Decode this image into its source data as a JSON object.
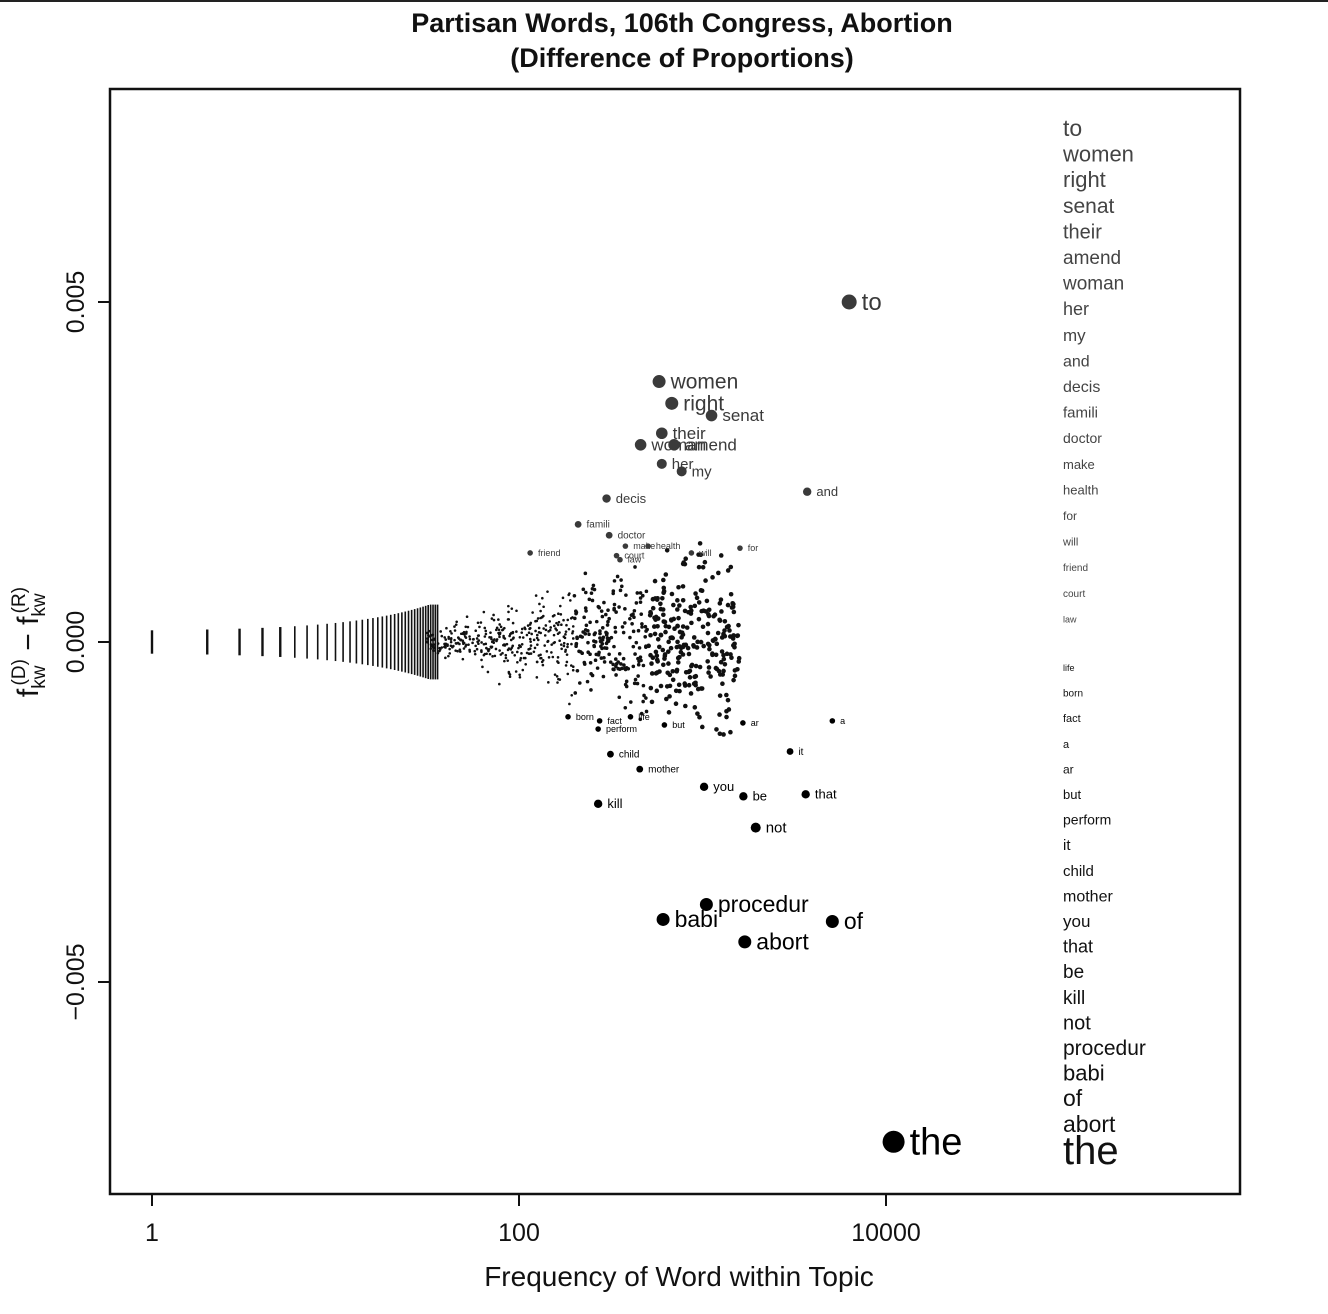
{
  "title_line1": "Partisan Words, 106th Congress, Abortion",
  "title_line2": "(Difference of Proportions)",
  "chart_data": {
    "type": "scatter",
    "title": "Partisan Words, 106th Congress, Abortion (Difference of Proportions)",
    "xlabel": "Frequency of Word within Topic",
    "ylabel": "f_kw^(D) - f_kw^(R)",
    "x_scale": "log",
    "xlim": [
      0.6,
      10000000
    ],
    "ylim": [
      -0.0082,
      0.0081
    ],
    "x_ticks": [
      1,
      100,
      10000
    ],
    "x_tick_labels": [
      "1",
      "100",
      "10000"
    ],
    "y_ticks": [
      -0.005,
      0,
      0.005
    ],
    "y_tick_labels": [
      "-0.005",
      "0.000",
      "0.005"
    ],
    "grid": false,
    "legend": "none",
    "point_colors": {
      "democrat": "#3a3a3a",
      "republican": "#000000"
    },
    "labeled_points": [
      {
        "word": "to",
        "x": 6300,
        "y": 0.005
      },
      {
        "word": "women",
        "x": 580,
        "y": 0.00383
      },
      {
        "word": "right",
        "x": 680,
        "y": 0.00351
      },
      {
        "word": "senat",
        "x": 1120,
        "y": 0.00333
      },
      {
        "word": "their",
        "x": 600,
        "y": 0.00307
      },
      {
        "word": "woman",
        "x": 460,
        "y": 0.0029
      },
      {
        "word": "amend",
        "x": 700,
        "y": 0.0029
      },
      {
        "word": "her",
        "x": 600,
        "y": 0.00262
      },
      {
        "word": "my",
        "x": 770,
        "y": 0.00251
      },
      {
        "word": "and",
        "x": 3720,
        "y": 0.00221
      },
      {
        "word": "decis",
        "x": 300,
        "y": 0.00211
      },
      {
        "word": "famili",
        "x": 210,
        "y": 0.00173
      },
      {
        "word": "doctor",
        "x": 310,
        "y": 0.00157
      },
      {
        "word": "make",
        "x": 380,
        "y": 0.00141
      },
      {
        "word": "health",
        "x": 505,
        "y": 0.00141
      },
      {
        "word": "for",
        "x": 1600,
        "y": 0.00138
      },
      {
        "word": "will",
        "x": 870,
        "y": 0.00131
      },
      {
        "word": "friend",
        "x": 115,
        "y": 0.00131
      },
      {
        "word": "court",
        "x": 340,
        "y": 0.00127
      },
      {
        "word": "law",
        "x": 355,
        "y": 0.00121
      },
      {
        "word": "life",
        "x": 405,
        "y": -0.0011
      },
      {
        "word": "born",
        "x": 185,
        "y": -0.0011
      },
      {
        "word": "fact",
        "x": 275,
        "y": -0.00116
      },
      {
        "word": "a",
        "x": 5100,
        "y": -0.00116
      },
      {
        "word": "ar",
        "x": 1660,
        "y": -0.00119
      },
      {
        "word": "but",
        "x": 620,
        "y": -0.00122
      },
      {
        "word": "perform",
        "x": 270,
        "y": -0.00128
      },
      {
        "word": "it",
        "x": 3000,
        "y": -0.00161
      },
      {
        "word": "child",
        "x": 315,
        "y": -0.00165
      },
      {
        "word": "mother",
        "x": 455,
        "y": -0.00187
      },
      {
        "word": "you",
        "x": 1020,
        "y": -0.00213
      },
      {
        "word": "that",
        "x": 3650,
        "y": -0.00224
      },
      {
        "word": "be",
        "x": 1670,
        "y": -0.00227
      },
      {
        "word": "kill",
        "x": 270,
        "y": -0.00238
      },
      {
        "word": "not",
        "x": 1950,
        "y": -0.00273
      },
      {
        "word": "procedur",
        "x": 1050,
        "y": -0.00386
      },
      {
        "word": "babi",
        "x": 610,
        "y": -0.00408
      },
      {
        "word": "of",
        "x": 5100,
        "y": -0.00411
      },
      {
        "word": "abort",
        "x": 1700,
        "y": -0.00441
      },
      {
        "word": "the",
        "x": 11000,
        "y": -0.00735
      }
    ],
    "side_list": {
      "democrat_words": [
        "to",
        "women",
        "right",
        "senat",
        "their",
        "amend",
        "woman",
        "her",
        "my",
        "and",
        "decis",
        "famili",
        "doctor",
        "make",
        "health",
        "for",
        "will",
        "friend",
        "court",
        "law"
      ],
      "republican_words": [
        "life",
        "born",
        "fact",
        "a",
        "ar",
        "but",
        "perform",
        "it",
        "child",
        "mother",
        "you",
        "that",
        "be",
        "kill",
        "not",
        "procedur",
        "babi",
        "of",
        "abort",
        "the"
      ]
    }
  }
}
